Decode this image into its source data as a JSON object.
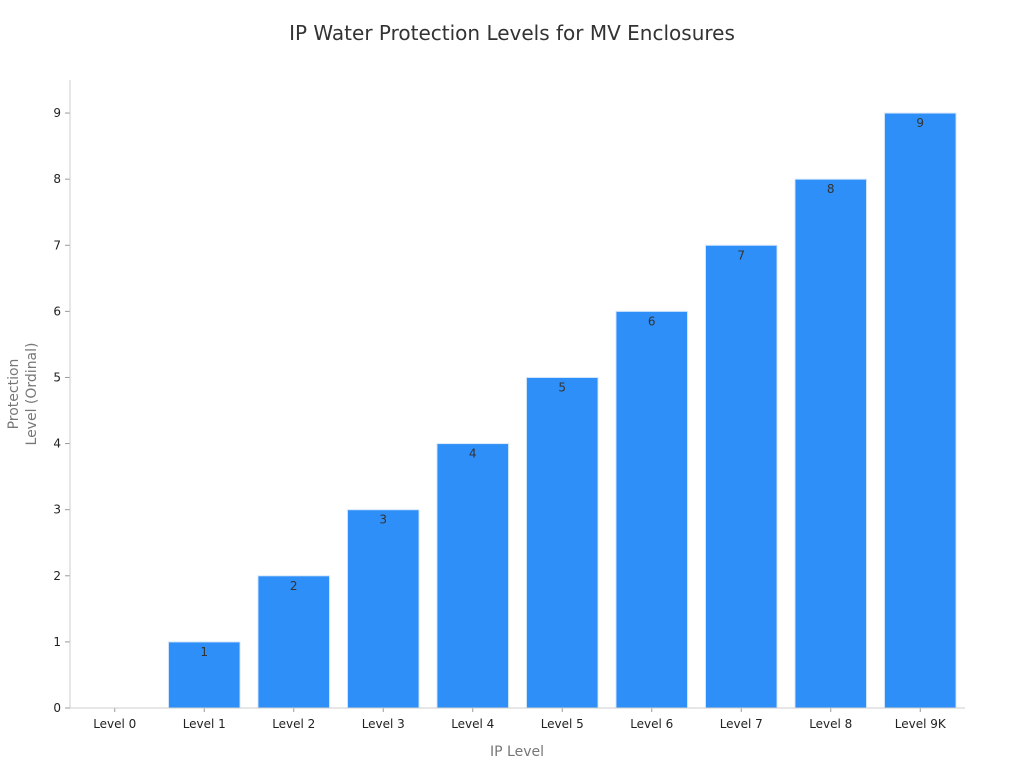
{
  "chart_data": {
    "type": "bar",
    "title": "IP Water Protection Levels for MV Enclosures",
    "xlabel": "IP Level",
    "ylabel_lines": [
      "Protection",
      "Level (Ordinal)"
    ],
    "categories": [
      "Level 0",
      "Level 1",
      "Level 2",
      "Level 3",
      "Level 4",
      "Level 5",
      "Level 6",
      "Level 7",
      "Level 8",
      "Level 9K"
    ],
    "values": [
      0,
      1,
      2,
      3,
      4,
      5,
      6,
      7,
      8,
      9
    ],
    "data_labels": [
      "",
      "1",
      "2",
      "3",
      "4",
      "5",
      "6",
      "7",
      "8",
      "9"
    ],
    "ylim": [
      0,
      9.5
    ],
    "yticks": [
      0,
      1,
      2,
      3,
      4,
      5,
      6,
      7,
      8,
      9
    ],
    "ytick_labels": [
      "0",
      "1",
      "2",
      "3",
      "4",
      "5",
      "6",
      "7",
      "8",
      "9"
    ],
    "grid": false,
    "bar_color": "#2f8ff8",
    "bar_edge_color": "#d7e8fb"
  }
}
